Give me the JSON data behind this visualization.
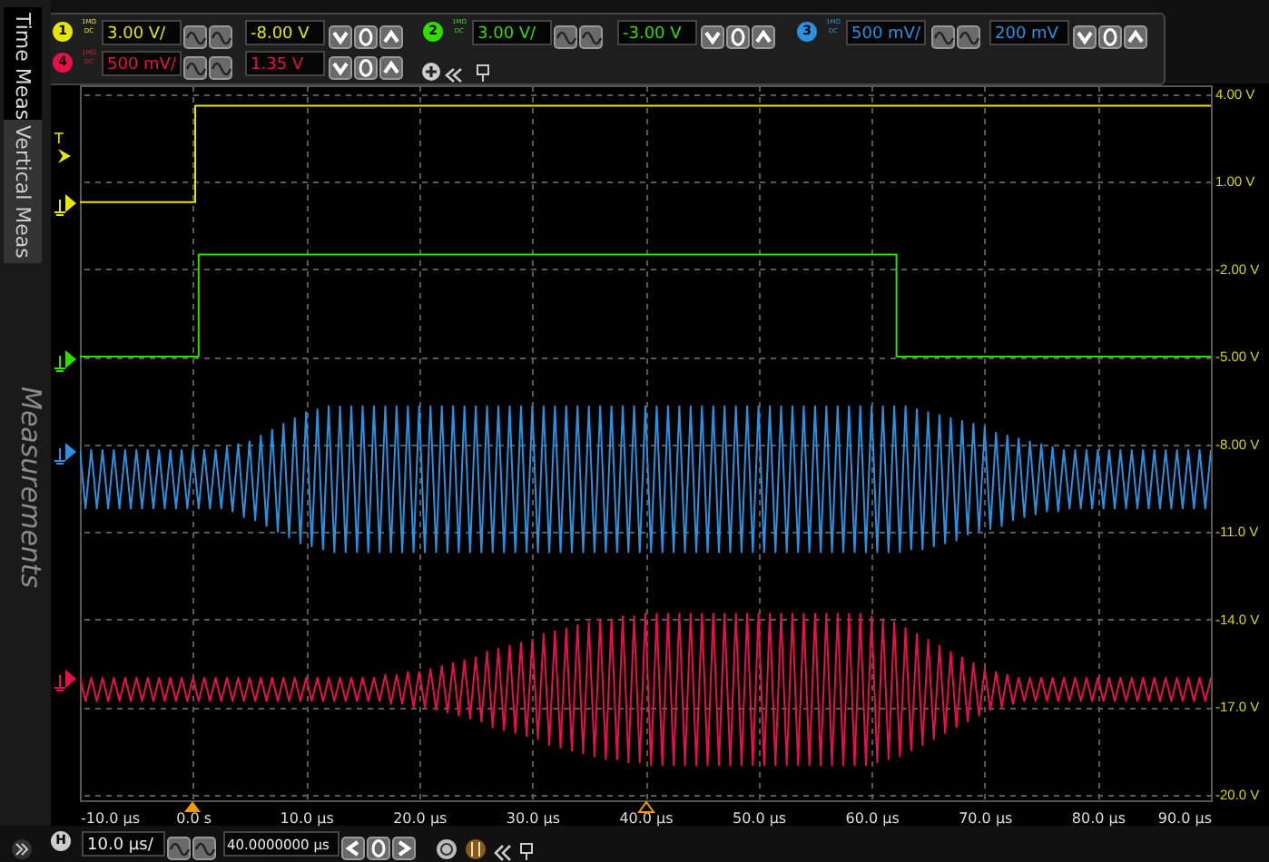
{
  "chart_data": {
    "type": "line",
    "xlim": [
      -10,
      90
    ],
    "ylim": [
      -20.2,
      4.3
    ],
    "xticks": [
      {
        "value": -10,
        "label": "-10.0 µs"
      },
      {
        "value": 0,
        "label": "0.0 s"
      },
      {
        "value": 10,
        "label": "10.0 µs"
      },
      {
        "value": 20,
        "label": "20.0 µs"
      },
      {
        "value": 30,
        "label": "30.0 µs"
      },
      {
        "value": 40,
        "label": "40.0 µs"
      },
      {
        "value": 50,
        "label": "50.0 µs"
      },
      {
        "value": 60,
        "label": "60.0 µs"
      },
      {
        "value": 70,
        "label": "70.0 µs"
      },
      {
        "value": 80,
        "label": "80.0 µs"
      },
      {
        "value": 90,
        "label": "90.0 µs"
      }
    ],
    "yticks": [
      {
        "value": 4,
        "label": "4.00 V"
      },
      {
        "value": 1,
        "label": "1.00 V"
      },
      {
        "value": -2,
        "label": "-2.00 V"
      },
      {
        "value": -5,
        "label": "-5.00 V"
      },
      {
        "value": -8,
        "label": "-8.00 V"
      },
      {
        "value": -11,
        "label": "-11.0 V"
      },
      {
        "value": -14,
        "label": "-14.0 V"
      },
      {
        "value": -17,
        "label": "-17.0 V"
      },
      {
        "value": -20,
        "label": "-20.0 V"
      }
    ],
    "grid": true,
    "marker": "none",
    "line_style": "solid",
    "annotations": [
      "Time Meas",
      "Vertical Meas",
      "Measurements",
      "1",
      "3.00 V/",
      "-8.00 V",
      "2",
      "3.00 V/",
      "-3.00 V",
      "3",
      "500 mV/",
      "200 mV",
      "4",
      "500 mV/",
      "1.35 V",
      "H",
      "10.0 µs/",
      "40.0000000 µs",
      "T",
      "1MΩ DC",
      "1MΩ DC",
      "1MΩ DC",
      "1MΩ DC"
    ],
    "x": [
      -10,
      -9.5,
      -9,
      -8.5,
      -8,
      -7.5,
      -7,
      -6.5,
      -6,
      -5.5,
      -5,
      -4.5,
      -4,
      -3.5,
      -3,
      -2.5,
      -2,
      -1.5,
      -1,
      -0.5,
      0,
      0.5,
      1,
      1.5,
      2,
      2.5,
      3,
      3.5,
      4,
      4.5,
      5,
      5.5,
      6,
      6.5,
      7,
      7.5,
      8,
      8.5,
      9,
      9.5,
      10,
      10.5,
      11,
      11.5,
      12,
      12.5,
      13,
      13.5,
      14,
      14.5,
      15,
      15.5,
      16,
      16.5,
      17,
      17.5,
      18,
      18.5,
      19,
      19.5,
      20,
      20.5,
      21,
      21.5,
      22,
      22.5,
      23,
      23.5,
      24,
      24.5,
      25,
      25.5,
      26,
      26.5,
      27,
      27.5,
      28,
      28.5,
      29,
      29.5,
      30,
      30.5,
      31,
      31.5,
      32,
      32.5,
      33,
      33.5,
      34,
      34.5,
      35,
      35.5,
      36,
      36.5,
      37,
      37.5,
      38,
      38.5,
      39,
      39.5,
      40,
      40.5,
      41,
      41.5,
      42,
      42.5,
      43,
      43.5,
      44,
      44.5,
      45,
      45.5,
      46,
      46.5,
      47,
      47.5,
      48,
      48.5,
      49,
      49.5,
      50,
      50.5,
      51,
      51.5,
      52,
      52.5,
      53,
      53.5,
      54,
      54.5,
      55,
      55.5,
      56,
      56.5,
      57,
      57.5,
      58,
      58.5,
      59,
      59.5,
      60,
      60.5,
      61,
      61.5,
      62,
      62.5,
      63,
      63.5,
      64,
      64.5,
      65,
      65.5,
      66,
      66.5,
      67,
      67.5,
      68,
      68.5,
      69,
      69.5,
      70,
      70.5,
      71,
      71.5,
      72,
      72.5,
      73,
      73.5,
      74,
      74.5,
      75,
      75.5,
      76,
      76.5,
      77,
      77.5,
      78,
      78.5,
      79,
      79.5,
      80,
      80.5,
      81,
      81.5,
      82,
      82.5,
      83,
      83.5,
      84,
      84.5,
      85,
      85.5,
      86,
      86.5,
      87,
      87.5,
      88,
      88.5,
      89,
      89.5,
      90
    ],
    "series": [
      {
        "color": "#e6e600",
        "x": [
          -10,
          0.2,
          0.2,
          90
        ],
        "values": [
          0.3,
          0.3,
          3.6,
          3.6
        ]
      },
      {
        "color": "#33dd00",
        "x": [
          -10,
          0.5,
          0.5,
          62.2,
          62.2,
          90
        ],
        "values": [
          -5.0,
          -5.0,
          -1.5,
          -1.5,
          -5.0,
          -5.0
        ]
      },
      {
        "color": "#2b90e0",
        "values": [
          -8.2,
          -10.2,
          -8.2,
          -10.2,
          -8.2,
          -10.2,
          -8.2,
          -10.2,
          -8.2,
          -10.2,
          -8.2,
          -10.2,
          -8.2,
          -10.2,
          -8.2,
          -10.2,
          -8.2,
          -10.2,
          -8.2,
          -10.2,
          -8.2,
          -10.2,
          -8.2,
          -10.2,
          -8.2,
          -10.2,
          -8.1,
          -10.3,
          -8.0,
          -10.5,
          -7.9,
          -10.6,
          -7.7,
          -10.8,
          -7.5,
          -11.0,
          -7.3,
          -11.2,
          -7.1,
          -11.4,
          -6.9,
          -11.5,
          -6.8,
          -11.6,
          -6.7,
          -11.7,
          -6.7,
          -11.7,
          -6.7,
          -11.7,
          -6.7,
          -11.7,
          -6.7,
          -11.7,
          -6.7,
          -11.7,
          -6.7,
          -11.7,
          -6.7,
          -11.7,
          -6.7,
          -11.7,
          -6.7,
          -11.7,
          -6.7,
          -11.7,
          -6.7,
          -11.7,
          -6.7,
          -11.7,
          -6.7,
          -11.7,
          -6.7,
          -11.7,
          -6.7,
          -11.7,
          -6.7,
          -11.7,
          -6.7,
          -11.7,
          -6.7,
          -11.7,
          -6.7,
          -11.7,
          -6.7,
          -11.7,
          -6.7,
          -11.7,
          -6.7,
          -11.7,
          -6.7,
          -11.7,
          -6.7,
          -11.7,
          -6.7,
          -11.7,
          -6.7,
          -11.7,
          -6.7,
          -11.7,
          -6.7,
          -11.7,
          -6.7,
          -11.7,
          -6.7,
          -11.7,
          -6.7,
          -11.7,
          -6.7,
          -11.7,
          -6.7,
          -11.7,
          -6.7,
          -11.7,
          -6.7,
          -11.7,
          -6.7,
          -11.7,
          -6.7,
          -11.7,
          -6.7,
          -11.7,
          -6.7,
          -11.7,
          -6.7,
          -11.7,
          -6.7,
          -11.7,
          -6.7,
          -11.7,
          -6.7,
          -11.7,
          -6.7,
          -11.7,
          -6.7,
          -11.7,
          -6.7,
          -11.7,
          -6.7,
          -11.7,
          -6.7,
          -11.7,
          -6.7,
          -11.7,
          -6.7,
          -11.7,
          -6.7,
          -11.6,
          -6.8,
          -11.6,
          -6.9,
          -11.5,
          -7.0,
          -11.4,
          -7.1,
          -11.3,
          -7.2,
          -11.1,
          -7.3,
          -11.0,
          -7.4,
          -10.9,
          -7.6,
          -10.8,
          -7.7,
          -10.6,
          -7.8,
          -10.5,
          -7.9,
          -10.4,
          -8.0,
          -10.3,
          -8.1,
          -10.3,
          -8.2,
          -10.2,
          -8.2,
          -10.2,
          -8.2,
          -10.2,
          -8.2,
          -10.2,
          -8.2,
          -10.2,
          -8.2,
          -10.2,
          -8.2,
          -10.2,
          -8.2,
          -10.2,
          -8.2,
          -10.2,
          -8.2,
          -10.2,
          -8.2,
          -10.2,
          -8.2,
          -10.2,
          -8.2,
          -10.2,
          -8.2
        ]
      },
      {
        "color": "#e8104a",
        "values": [
          -16.0,
          -16.8,
          -16.0,
          -16.8,
          -16.0,
          -16.8,
          -16.0,
          -16.8,
          -16.0,
          -16.8,
          -16.0,
          -16.8,
          -16.0,
          -16.8,
          -16.0,
          -16.8,
          -16.0,
          -16.8,
          -16.0,
          -16.8,
          -16.0,
          -16.8,
          -16.0,
          -16.8,
          -16.0,
          -16.8,
          -16.0,
          -16.8,
          -16.0,
          -16.8,
          -16.0,
          -16.8,
          -16.0,
          -16.8,
          -16.0,
          -16.8,
          -16.0,
          -16.8,
          -16.0,
          -16.8,
          -16.0,
          -16.8,
          -16.0,
          -16.8,
          -16.0,
          -16.8,
          -16.0,
          -16.8,
          -16.0,
          -16.8,
          -16.0,
          -16.8,
          -16.0,
          -16.8,
          -15.9,
          -16.9,
          -15.9,
          -16.9,
          -15.8,
          -17.0,
          -15.8,
          -17.0,
          -15.7,
          -17.1,
          -15.6,
          -17.2,
          -15.5,
          -17.3,
          -15.4,
          -17.4,
          -15.3,
          -17.5,
          -15.1,
          -17.7,
          -15.0,
          -17.8,
          -14.9,
          -17.9,
          -14.8,
          -18.0,
          -14.7,
          -18.1,
          -14.5,
          -18.3,
          -14.4,
          -18.4,
          -14.3,
          -18.5,
          -14.2,
          -18.6,
          -14.1,
          -18.7,
          -14.0,
          -18.8,
          -14.0,
          -18.8,
          -13.9,
          -18.9,
          -13.9,
          -18.9,
          -13.8,
          -19.0,
          -13.8,
          -19.0,
          -13.8,
          -19.0,
          -13.8,
          -19.0,
          -13.8,
          -19.0,
          -13.8,
          -19.0,
          -13.8,
          -19.0,
          -13.8,
          -19.0,
          -13.8,
          -19.0,
          -13.8,
          -19.0,
          -13.8,
          -19.0,
          -13.8,
          -19.0,
          -13.8,
          -19.0,
          -13.8,
          -19.0,
          -13.8,
          -19.0,
          -13.8,
          -19.0,
          -13.8,
          -19.0,
          -13.8,
          -19.0,
          -13.8,
          -19.0,
          -13.8,
          -19.0,
          -13.9,
          -18.9,
          -14.0,
          -18.8,
          -14.1,
          -18.7,
          -14.3,
          -18.5,
          -14.5,
          -18.3,
          -14.7,
          -18.1,
          -14.9,
          -17.9,
          -15.1,
          -17.7,
          -15.3,
          -17.5,
          -15.5,
          -17.3,
          -15.7,
          -17.1,
          -15.8,
          -17.0,
          -15.9,
          -16.9,
          -16.0,
          -16.8,
          -16.0,
          -16.8,
          -16.0,
          -16.8,
          -16.0,
          -16.8,
          -16.0,
          -16.8,
          -16.0,
          -16.8,
          -16.0,
          -16.8,
          -16.0,
          -16.8,
          -16.0,
          -16.8,
          -16.0,
          -16.8,
          -16.0,
          -16.8,
          -16.0,
          -16.8,
          -16.0,
          -16.8,
          -16.0,
          -16.8,
          -16.0,
          -16.8,
          -16.0,
          -16.8,
          -16.0,
          -16.8,
          -16.0
        ]
      }
    ]
  }
}
